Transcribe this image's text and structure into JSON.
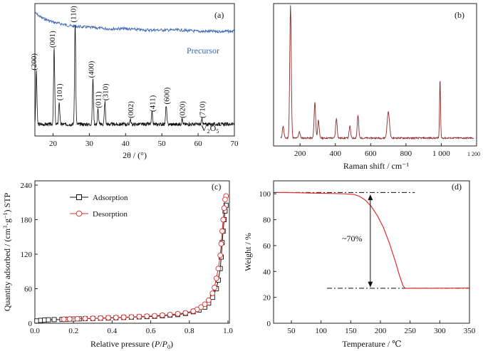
{
  "chart_data": [
    {
      "type": "line",
      "panel_label": "(a)",
      "xlabel": "2θ / (°)",
      "xlim": [
        15,
        70
      ],
      "x_ticks": [
        20,
        30,
        40,
        50,
        60,
        70
      ],
      "series": [
        {
          "name": "Precursor",
          "color": "#3a64b4",
          "x": [
            15,
            17,
            20,
            25,
            30,
            35,
            40,
            45,
            50,
            55,
            60,
            65,
            70
          ],
          "y": [
            0.93,
            0.89,
            0.86,
            0.83,
            0.82,
            0.81,
            0.81,
            0.8,
            0.8,
            0.8,
            0.79,
            0.79,
            0.79
          ]
        },
        {
          "name": "V2O5",
          "color": "#111111",
          "peaks": [
            {
              "label": "(200)",
              "x": 15.4,
              "height": 0.42
            },
            {
              "label": "(001)",
              "x": 20.3,
              "height": 0.6
            },
            {
              "label": "(101)",
              "x": 21.7,
              "height": 0.18
            },
            {
              "label": "(110)",
              "x": 26.1,
              "height": 0.8
            },
            {
              "label": "(400)",
              "x": 31.0,
              "height": 0.36
            },
            {
              "label": "(011)",
              "x": 32.4,
              "height": 0.12
            },
            {
              "label": "(310)",
              "x": 34.3,
              "height": 0.18
            },
            {
              "label": "(002)",
              "x": 41.3,
              "height": 0.04
            },
            {
              "label": "(411)",
              "x": 47.3,
              "height": 0.09
            },
            {
              "label": "(600)",
              "x": 51.2,
              "height": 0.15
            },
            {
              "label": "(020)",
              "x": 55.6,
              "height": 0.04
            },
            {
              "label": "(710)",
              "x": 61.1,
              "height": 0.04
            }
          ]
        }
      ],
      "series_labels": {
        "precursor": "Precursor",
        "product_main": "V",
        "product_sub1": "2",
        "product_mid": "O",
        "product_sub2": "5"
      }
    },
    {
      "type": "line",
      "panel_label": "(b)",
      "xlabel": "Raman shift / cm⁻¹",
      "xlim": [
        50,
        1200
      ],
      "x_ticks": [
        "200",
        "400",
        "600",
        "800",
        "1 000",
        "1 200"
      ],
      "series": [
        {
          "name": "",
          "color": "#8b2a2a",
          "peaks": [
            {
              "x": 104,
              "height": 0.09
            },
            {
              "x": 146,
              "height": 1.0
            },
            {
              "x": 196,
              "height": 0.05
            },
            {
              "x": 284,
              "height": 0.27
            },
            {
              "x": 304,
              "height": 0.14
            },
            {
              "x": 406,
              "height": 0.15
            },
            {
              "x": 482,
              "height": 0.09
            },
            {
              "x": 528,
              "height": 0.17
            },
            {
              "x": 700,
              "height": 0.2
            },
            {
              "x": 993,
              "height": 0.45
            }
          ]
        }
      ]
    },
    {
      "type": "line",
      "panel_label": "(c)",
      "xlabel_parts": {
        "a": "Relative pressure (",
        "b": "P",
        "c": "/",
        "d": "P",
        "e": "0",
        "f": ")"
      },
      "ylabel_parts": {
        "a": "Quantity adsorbed / (cm",
        "b": "3",
        "c": "·g",
        "d": "−1",
        "e": ") STP"
      },
      "xlim": [
        0,
        1.0
      ],
      "ylim": [
        0,
        240
      ],
      "x_ticks": [
        "0.0",
        "0.2",
        "0.4",
        "0.6",
        "0.8",
        "1.0"
      ],
      "y_ticks": [
        "0",
        "60",
        "120",
        "180",
        "240"
      ],
      "legend_placement": "top-left",
      "series": [
        {
          "name": "Adsorption",
          "color": "#111111",
          "marker": "square",
          "x": [
            0.01,
            0.03,
            0.05,
            0.07,
            0.1,
            0.14,
            0.17,
            0.2,
            0.23,
            0.26,
            0.3,
            0.34,
            0.38,
            0.42,
            0.46,
            0.5,
            0.54,
            0.58,
            0.62,
            0.66,
            0.7,
            0.74,
            0.78,
            0.82,
            0.85,
            0.88,
            0.9,
            0.92,
            0.94,
            0.95,
            0.96,
            0.965,
            0.97,
            0.975,
            0.98,
            0.985,
            0.99
          ],
          "y": [
            4,
            5,
            5.5,
            6,
            6.3,
            6.6,
            7,
            7.3,
            7.6,
            8,
            8.3,
            8.7,
            9,
            9.5,
            10,
            10.5,
            11,
            11.5,
            12,
            13,
            14,
            15,
            17,
            20,
            23,
            28,
            35,
            45,
            60,
            75,
            95,
            115,
            140,
            160,
            180,
            195,
            205
          ]
        },
        {
          "name": "Desorption",
          "color": "#e03030",
          "marker": "circle",
          "x": [
            0.99,
            0.985,
            0.98,
            0.975,
            0.97,
            0.965,
            0.96,
            0.95,
            0.94,
            0.93,
            0.92,
            0.9,
            0.88,
            0.86,
            0.84,
            0.82,
            0.78,
            0.74,
            0.7,
            0.66,
            0.62,
            0.58,
            0.54,
            0.5,
            0.46,
            0.42,
            0.38,
            0.34,
            0.3,
            0.26,
            0.22,
            0.18,
            0.15
          ],
          "y": [
            221,
            215,
            200,
            180,
            160,
            138,
            118,
            95,
            78,
            62,
            52,
            40,
            33,
            28,
            24,
            21,
            18,
            16.5,
            15,
            14,
            13,
            12.3,
            11.6,
            11,
            10.5,
            10,
            9.5,
            9,
            8.6,
            8.2,
            7.8,
            7.4,
            7
          ]
        }
      ]
    },
    {
      "type": "line",
      "panel_label": "(d)",
      "xlabel": "Temperature / ℃",
      "ylabel": "Weight / %",
      "xlim": [
        20,
        350
      ],
      "ylim": [
        0,
        110
      ],
      "x_ticks": [
        "50",
        "100",
        "150",
        "200",
        "250",
        "300",
        "350"
      ],
      "y_ticks": [
        "0",
        "20",
        "40",
        "60",
        "80",
        "100"
      ],
      "annotation": "~70%",
      "reference_lines": [
        {
          "y": 101,
          "x_from": 20,
          "x_to": 258
        },
        {
          "y": 27,
          "x_from": 110,
          "x_to": 350
        }
      ],
      "series": [
        {
          "name": "",
          "color": "#e03030",
          "x": [
            25,
            40,
            60,
            80,
            100,
            120,
            140,
            155,
            165,
            175,
            185,
            195,
            205,
            215,
            225,
            232,
            238,
            241,
            243,
            260,
            290,
            320,
            350
          ],
          "y": [
            101,
            101,
            100.8,
            100.6,
            100.4,
            100.2,
            100,
            99.5,
            98,
            95,
            90,
            83,
            74,
            62,
            48,
            37,
            29,
            27.3,
            27,
            27,
            27,
            27.1,
            27.2
          ]
        }
      ]
    }
  ]
}
